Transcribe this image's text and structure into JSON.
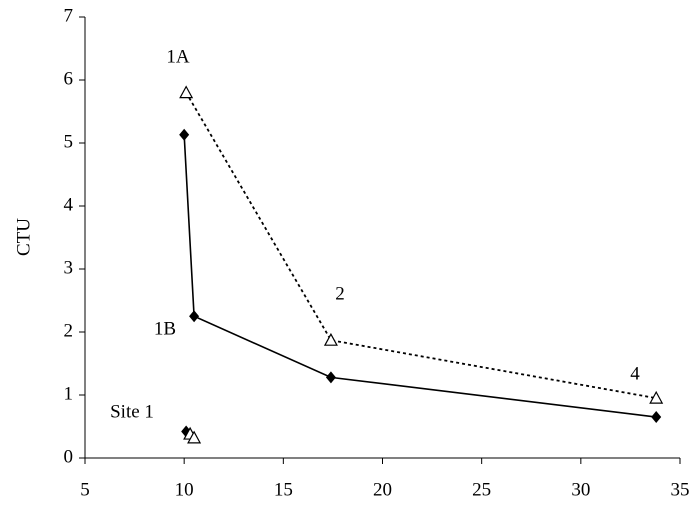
{
  "chart_data": {
    "type": "scatter",
    "y_label": "CTU",
    "xlim": [
      5,
      35
    ],
    "xticks": [
      5,
      10,
      15,
      20,
      25,
      30,
      35
    ],
    "ylim": [
      0,
      7
    ],
    "yticks": [
      0,
      1,
      2,
      3,
      4,
      5,
      6,
      7
    ],
    "series": [
      {
        "marker": "diamond",
        "line": "solid",
        "color": "#000000",
        "x": [
          10.0,
          10.5,
          17.4,
          33.8
        ],
        "values": [
          5.13,
          2.25,
          1.28,
          0.65
        ]
      },
      {
        "marker": "triangle",
        "line": "dashed",
        "color": "#000000",
        "x": [
          10.1,
          17.4,
          33.8
        ],
        "values": [
          5.8,
          1.87,
          0.95
        ]
      },
      {
        "marker": "diamond",
        "line": "none",
        "color": "#000000",
        "x": [
          10.1
        ],
        "values": [
          0.42
        ]
      },
      {
        "marker": "triangle",
        "line": "none",
        "color": "#000000",
        "x": [
          10.3,
          10.5
        ],
        "values": [
          0.38,
          0.32
        ]
      }
    ],
    "annotations": [
      "1A",
      "2",
      "1B",
      "4",
      "Site 1"
    ]
  }
}
